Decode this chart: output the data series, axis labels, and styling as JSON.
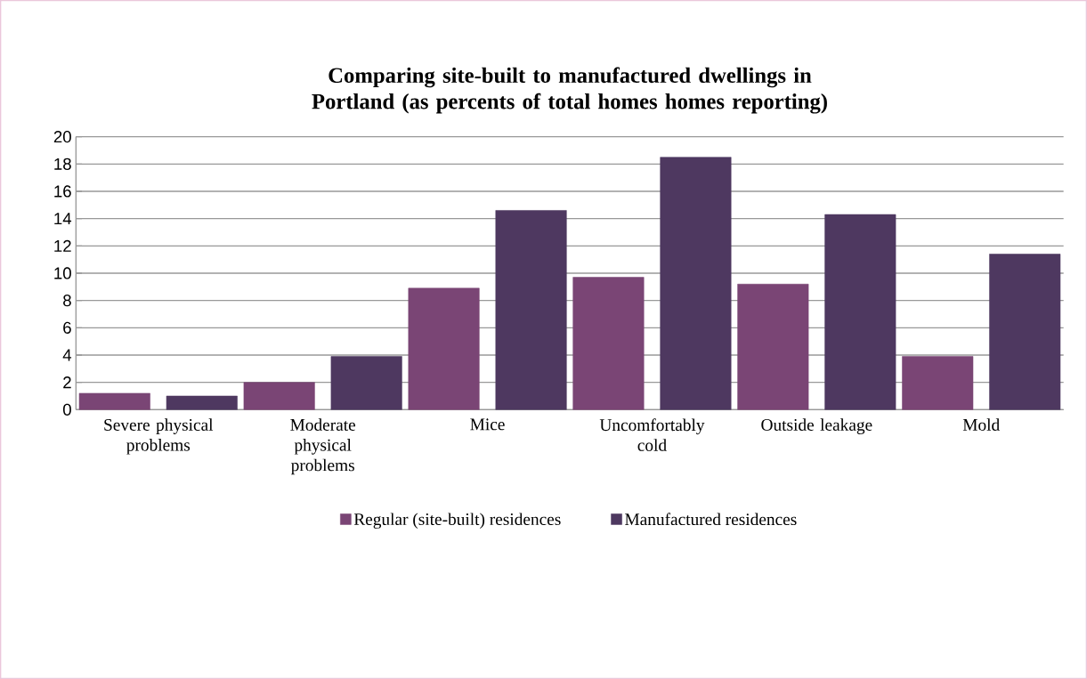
{
  "chart_data": {
    "type": "bar",
    "title": "Comparing site-built to manufactured dwellings in Portland (as percents of total homes homes reporting)",
    "categories": [
      "Severe physical problems",
      "Moderate physical problems",
      "Mice",
      "Uncomfortably cold",
      "Outside leakage",
      "Mold"
    ],
    "series": [
      {
        "name": "Regular (site-built) residences",
        "color": "#7a4575",
        "values": [
          1.2,
          2.0,
          8.9,
          9.7,
          9.2,
          3.9
        ]
      },
      {
        "name": "Manufactured residences",
        "color": "#4e3860",
        "values": [
          1.0,
          3.9,
          14.6,
          18.5,
          14.3,
          11.4
        ]
      }
    ],
    "ylim": [
      0,
      20
    ],
    "yticks": [
      0,
      2,
      4,
      6,
      8,
      10,
      12,
      14,
      16,
      18,
      20
    ],
    "grid": "y",
    "legend": "bottom"
  }
}
